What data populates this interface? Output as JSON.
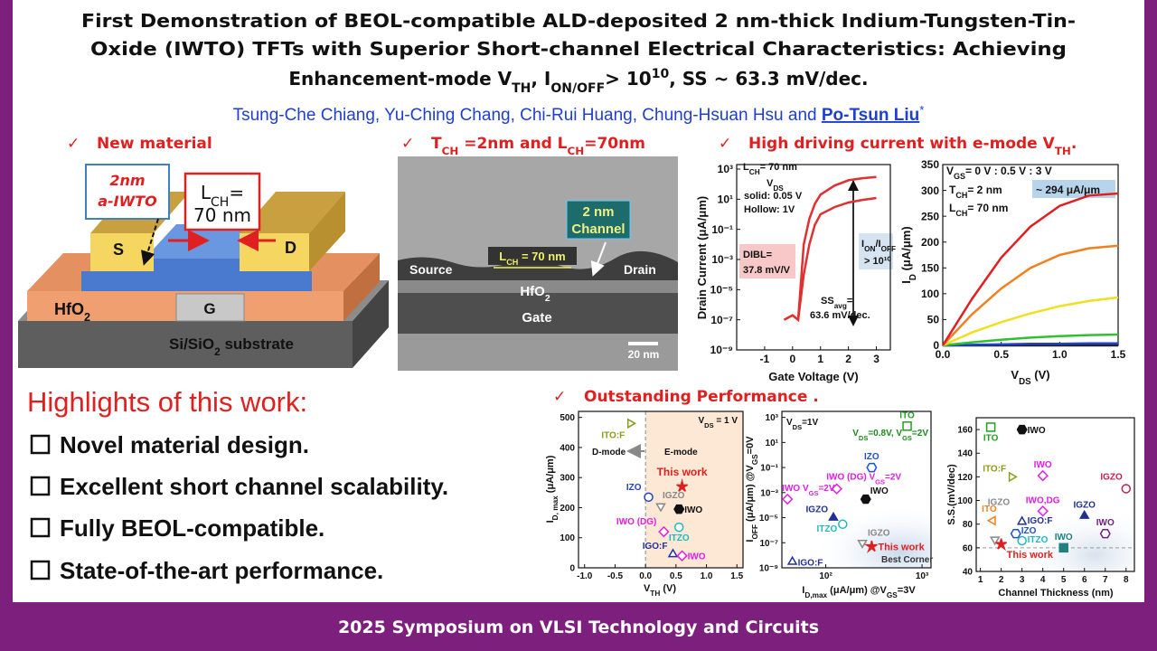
{
  "header": {
    "title": [
      "First Demonstration of BEOL-compatible ALD-deposited 2 nm-thick Indium-Tungsten-Tin-",
      "Oxide (IWTO) TFTs with Superior Short-channel Electrical Characteristics: Achieving",
      [
        "Enhancement-mode V",
        "TH",
        ", I",
        "ON/OFF",
        "> 10",
        "10",
        ", SS ~ 63.3 mV/dec."
      ]
    ],
    "authors": [
      "Tsung-Che Chiang, Yu-Ching Chang, Chi-Rui Huang, Chung-Hsuan Hsu and ",
      "Po-Tsun Liu",
      "*"
    ]
  },
  "sections": {
    "check": "✓",
    "new_material": "New material",
    "tem_heading": [
      "T",
      "CH",
      " =2nm and L",
      "CH",
      "=70nm"
    ],
    "driving": [
      "High driving current with e-mode V",
      "TH",
      "."
    ],
    "performance": "Outstanding Performance ."
  },
  "device": {
    "film": [
      "2nm",
      "a-IWTO"
    ],
    "length": [
      [
        "L",
        "CH",
        "="
      ],
      "70 nm"
    ],
    "source": "S",
    "drain": "D",
    "gate": "G",
    "dielectric": [
      "HfO",
      "2"
    ],
    "substrate": [
      "Si/SiO",
      "2",
      " substrate"
    ]
  },
  "tem": {
    "channel": [
      "2 nm",
      "Channel"
    ],
    "source": "Source",
    "drain": "Drain",
    "length": [
      "L",
      "CH",
      " = 70 nm"
    ],
    "dielectric": [
      "HfO",
      "2"
    ],
    "gate": "Gate",
    "scale": "20 nm"
  },
  "highlights": {
    "title": "Highlights of this work:",
    "items": [
      "Novel material design.",
      "Excellent short channel scalability.",
      "Fully BEOL-compatible.",
      "State-of-the-art performance."
    ]
  },
  "footer": "2025 Symposium on VLSI Technology and Circuits",
  "chart_data": [
    {
      "type": "line",
      "xlabel": "Gate Voltage (V)",
      "ylabel": "Drain Current (μA/μm)",
      "xlim": [
        -2,
        3.5
      ],
      "xticks": [
        -1,
        0,
        1,
        2,
        3
      ],
      "ylim": [
        1e-09,
        2000
      ],
      "ylog": true,
      "yticks": [
        {
          "value": 1000,
          "label": "10³"
        },
        {
          "value": 10,
          "label": "10¹"
        },
        {
          "value": 0.1,
          "label": "10⁻¹"
        },
        {
          "value": 0.001,
          "label": "10⁻³"
        },
        {
          "value": 1e-05,
          "label": "10⁻⁵"
        },
        {
          "value": 1e-07,
          "label": "10⁻⁷"
        },
        {
          "value": 1e-09,
          "label": "10⁻⁹"
        }
      ],
      "x": [
        -0.3,
        0,
        0.2,
        0.4,
        0.6,
        0.8,
        1,
        1.5,
        2,
        2.5,
        3
      ],
      "series": [
        {
          "color": "#e03030",
          "values": [
            1e-07,
            2e-07,
            1e-07,
            0.0001,
            0.01,
            0.2,
            1,
            3,
            6,
            9,
            12
          ]
        },
        {
          "color": "#e03030",
          "values": [
            1e-07,
            2e-07,
            1e-07,
            0.01,
            0.5,
            5,
            20,
            80,
            180,
            250,
            300
          ]
        }
      ],
      "annotations": [
        [
          "L",
          "CH",
          "= 70 nm"
        ],
        [
          "V",
          "DS"
        ],
        "solid: 0.05 V",
        "Hollow: 1V",
        "DIBL=",
        "37.8 mV/V",
        [
          "I",
          "ON",
          "/I",
          "OFF"
        ],
        "> 10¹⁰",
        [
          "SS",
          "avg",
          "="
        ],
        "63.6 mV/dec."
      ]
    },
    {
      "type": "line",
      "xlabel": [
        "V",
        "DS",
        " (V)"
      ],
      "ylabel": [
        "I",
        "D",
        " (μA/μm)"
      ],
      "xlim": [
        0,
        1.5
      ],
      "xticks": [
        {
          "value": 0,
          "label": "0.0"
        },
        0.5,
        {
          "value": 1,
          "label": "1.0"
        },
        1.5
      ],
      "ylim": [
        0,
        350
      ],
      "yticks": [
        0,
        50,
        100,
        150,
        200,
        250,
        300,
        350
      ],
      "x": [
        0,
        0.25,
        0.5,
        0.75,
        1,
        1.25,
        1.5
      ],
      "series": [
        {
          "color": "#222222",
          "values": [
            0,
            0,
            0,
            0,
            0,
            0,
            0
          ]
        },
        {
          "color": "#2040d0",
          "values": [
            0,
            1,
            2,
            3,
            3,
            4,
            4
          ]
        },
        {
          "color": "#30c030",
          "values": [
            0,
            6,
            11,
            15,
            18,
            20,
            21
          ]
        },
        {
          "color": "#f0e020",
          "values": [
            0,
            25,
            45,
            62,
            76,
            86,
            93
          ]
        },
        {
          "color": "#f08020",
          "values": [
            0,
            60,
            110,
            150,
            175,
            188,
            193
          ]
        },
        {
          "color": "#e02020",
          "values": [
            0,
            90,
            170,
            230,
            270,
            290,
            294
          ]
        }
      ],
      "annotations": [
        [
          "V",
          "GS",
          "= 0 V : 0.5 V : 3 V"
        ],
        [
          "T",
          "CH",
          "= 2 nm"
        ],
        [
          "L",
          "CH",
          "= 70 nm"
        ],
        "~ 294 μA/μm"
      ]
    },
    {
      "type": "scatter",
      "xlabel": [
        "V",
        "TH",
        " (V)"
      ],
      "ylabel": [
        "I",
        "D, max",
        " (μA/μm)"
      ],
      "xlim": [
        -1.1,
        1.6
      ],
      "xticks": [
        {
          "value": -1,
          "label": "-1.0"
        },
        -0.5,
        {
          "value": 0,
          "label": "0.0"
        },
        0.5,
        {
          "value": 1,
          "label": "1.0"
        },
        1.5
      ],
      "ylim": [
        0,
        520
      ],
      "yticks": [
        0,
        100,
        200,
        300,
        400,
        500
      ],
      "divider_x": 0,
      "points": [
        {
          "name": "ITO:F",
          "x": -0.25,
          "y": 480,
          "color": "#8a9a1a",
          "marker": "tri-right",
          "filled": false
        },
        {
          "name": "IZO",
          "x": 0.05,
          "y": 235,
          "color": "#2040c0",
          "marker": "circle",
          "filled": false
        },
        {
          "name": "IGZO",
          "x": 0.25,
          "y": 205,
          "color": "#888888",
          "marker": "tri-down",
          "filled": false
        },
        {
          "name": "IWO",
          "x": 0.55,
          "y": 195,
          "color": "#111111",
          "marker": "hex",
          "filled": true
        },
        {
          "name": "This work",
          "x": 0.6,
          "y": 270,
          "color": "#e02020",
          "marker": "star",
          "filled": true
        },
        {
          "name": "IWO (DG)",
          "x": 0.3,
          "y": 120,
          "color": "#e020e0",
          "marker": "diamond",
          "filled": false
        },
        {
          "name": "ITZO",
          "x": 0.55,
          "y": 135,
          "color": "#20b8c0",
          "marker": "circle",
          "filled": false
        },
        {
          "name": "IGO:F",
          "x": 0.45,
          "y": 45,
          "color": "#2030a0",
          "marker": "tri-up",
          "filled": false
        },
        {
          "name": "IWO",
          "x": 0.6,
          "y": 40,
          "color": "#e020e0",
          "marker": "diamond",
          "filled": false
        }
      ],
      "annotations": [
        [
          "V",
          "DS",
          " = 1 V"
        ],
        "D-mode",
        "E-mode"
      ]
    },
    {
      "type": "scatter",
      "xlabel": [
        "I",
        "D,max",
        " (μA/μm) @V",
        "GS",
        "=3V"
      ],
      "ylabel": [
        "I",
        "OFF",
        " (μA/μm) @V",
        "GS",
        "=0V"
      ],
      "xlim": [
        35,
        1240
      ],
      "xlog": true,
      "xticks": [
        {
          "value": 100,
          "label": "10²"
        },
        {
          "value": 1000,
          "label": "10³"
        }
      ],
      "ylim": [
        1e-09,
        3000
      ],
      "ylog": true,
      "yticks": [
        {
          "value": 1000,
          "label": "10³"
        },
        {
          "value": 10,
          "label": "10¹"
        },
        {
          "value": 0.1,
          "label": "10⁻¹"
        },
        {
          "value": 0.001,
          "label": "10⁻³"
        },
        {
          "value": 1e-05,
          "label": "10⁻⁵"
        },
        {
          "value": 1e-07,
          "label": "10⁻⁷"
        },
        {
          "value": 1e-09,
          "label": "10⁻⁹"
        }
      ],
      "points": [
        {
          "name": "ITO",
          "x": 700,
          "y": 200,
          "color": "#20a020",
          "marker": "square",
          "filled": false
        },
        {
          "name": "IZO",
          "x": 300,
          "y": 0.1,
          "color": "#2050d0",
          "marker": "hex",
          "filled": false
        },
        {
          "name": [
            "IWO (DG) V",
            "GS",
            "=2V"
          ],
          "x": 130,
          "y": 0.002,
          "color": "#e020e0",
          "marker": "diamond",
          "filled": false
        },
        {
          "name": [
            "IWO V",
            "GS",
            "=2V"
          ],
          "x": 40,
          "y": 0.0003,
          "color": "#e020e0",
          "marker": "diamond",
          "filled": false
        },
        {
          "name": "IWO",
          "x": 260,
          "y": 0.0003,
          "color": "#111111",
          "marker": "hex",
          "filled": true
        },
        {
          "name": "IGZO",
          "x": 120,
          "y": 1e-05,
          "color": "#203090",
          "marker": "tri-up",
          "filled": true
        },
        {
          "name": "ITZO",
          "x": 150,
          "y": 3e-06,
          "color": "#20b8c0",
          "marker": "circle",
          "filled": false
        },
        {
          "name": "IGZO",
          "x": 240,
          "y": 1e-07,
          "color": "#888888",
          "marker": "tri-down",
          "filled": false
        },
        {
          "name": "This work",
          "x": 300,
          "y": 5e-08,
          "color": "#e02020",
          "marker": "star",
          "filled": true
        },
        {
          "name": "IGO:F",
          "x": 45,
          "y": 3e-09,
          "color": "#2030a0",
          "marker": "tri-up",
          "filled": false
        }
      ],
      "annotations": [
        [
          "V",
          "DS",
          "=1V"
        ],
        [
          "V",
          "DS",
          "=0.8V, V",
          "GS",
          "=2V"
        ],
        "Best Corner"
      ]
    },
    {
      "type": "scatter",
      "xlabel": "Channel Thickness (nm)",
      "ylabel": "S.S.(mV/dec)",
      "xlim": [
        0.8,
        8.4
      ],
      "xticks": [
        1,
        2,
        3,
        4,
        5,
        6,
        7,
        8
      ],
      "ylim": [
        40,
        170
      ],
      "yticks": [
        40,
        60,
        80,
        100,
        120,
        140,
        160
      ],
      "ref_line": 60,
      "points": [
        {
          "name": "ITO",
          "x": 1.5,
          "y": 162,
          "color": "#20a020",
          "marker": "square",
          "filled": false
        },
        {
          "name": "IWO",
          "x": 3,
          "y": 160,
          "color": "#111111",
          "marker": "hex",
          "filled": true
        },
        {
          "name": "ITO:F",
          "x": 2.5,
          "y": 120,
          "color": "#8a9a1a",
          "marker": "tri-right",
          "filled": false
        },
        {
          "name": "IWO",
          "x": 4,
          "y": 121,
          "color": "#e020e0",
          "marker": "diamond",
          "filled": false
        },
        {
          "name": "IGZO",
          "x": 8,
          "y": 110,
          "color": "#c02050",
          "marker": "circle",
          "filled": false
        },
        {
          "name": "IGZO",
          "x": 1.7,
          "y": 67,
          "color": "#888888",
          "marker": "tri-down",
          "filled": false
        },
        {
          "name": "ITO",
          "x": 1.6,
          "y": 83,
          "color": "#f08020",
          "marker": "tri-left",
          "filled": false
        },
        {
          "name": "IWO,DG",
          "x": 4,
          "y": 91,
          "color": "#e020e0",
          "marker": "diamond",
          "filled": false
        },
        {
          "name": "IGZO",
          "x": 6,
          "y": 87,
          "color": "#203090",
          "marker": "tri-up",
          "filled": true
        },
        {
          "name": "IGO:F",
          "x": 3,
          "y": 82,
          "color": "#2030a0",
          "marker": "tri-up",
          "filled": false
        },
        {
          "name": "IZO",
          "x": 2.7,
          "y": 72,
          "color": "#2050d0",
          "marker": "hex",
          "filled": false
        },
        {
          "name": "ITZO",
          "x": 3,
          "y": 66,
          "color": "#20b8c0",
          "marker": "circle",
          "filled": false
        },
        {
          "name": "IWO",
          "x": 5,
          "y": 60,
          "color": "#208080",
          "marker": "square",
          "filled": true
        },
        {
          "name": "IWO",
          "x": 7,
          "y": 72,
          "color": "#702080",
          "marker": "hex",
          "filled": false
        },
        {
          "name": "This work",
          "x": 2,
          "y": 63,
          "color": "#e02020",
          "marker": "star",
          "filled": true
        }
      ]
    }
  ]
}
